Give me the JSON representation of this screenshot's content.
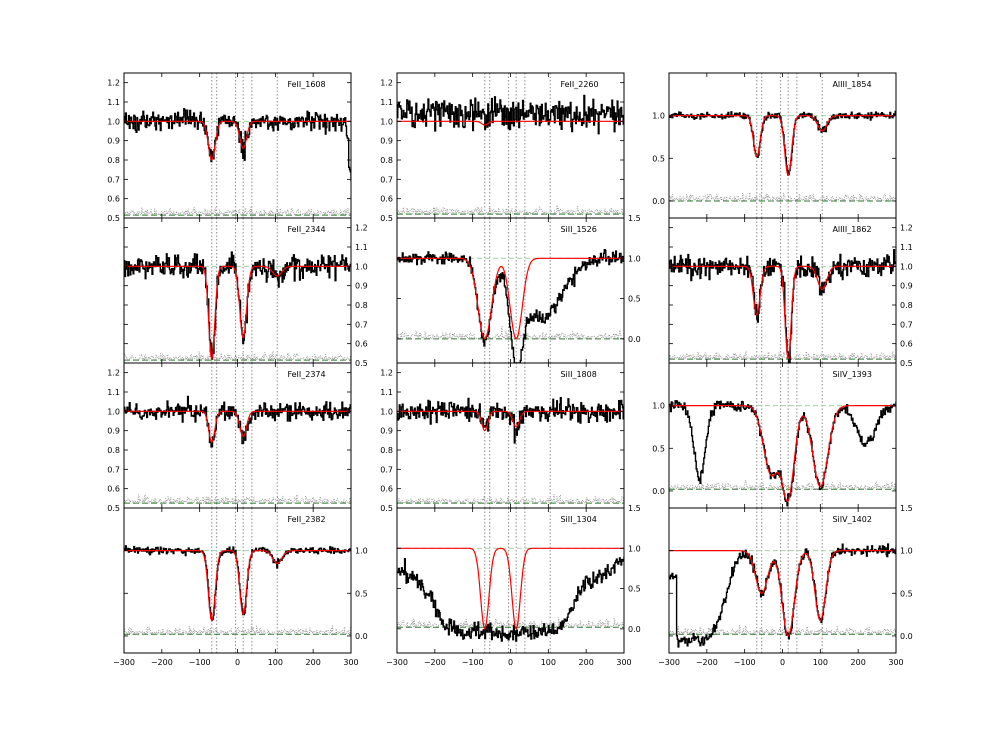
{
  "chart_data": {
    "type": "line",
    "xlim": [
      -300,
      300
    ],
    "x_ticks": [
      -300,
      -200,
      -100,
      0,
      100,
      200,
      300
    ],
    "component_velocities": [
      -68,
      -55,
      -5,
      15,
      38,
      105
    ],
    "colors": {
      "data": "#000000",
      "model": "#ff0000",
      "error": "#8c8c8c",
      "continuum": "#9fd49f",
      "zero": "#2a7a2a",
      "components": "#8c8c8c"
    },
    "columns": [
      {
        "panels": [
          {
            "title": "FeII_1608",
            "ylim": [
              0.5,
              1.25
            ],
            "yticks": [
              "0.5",
              "0.6",
              "0.7",
              "0.8",
              "0.9",
              "1.0",
              "1.1",
              "1.2"
            ],
            "ytick_values": [
              0.5,
              0.6,
              0.7,
              0.8,
              0.9,
              1.0,
              1.1,
              1.2
            ],
            "ticks_side": "left",
            "err_level": 0.515,
            "components": [
              {
                "v": -68,
                "depth": 0.2,
                "sigma": 9
              },
              {
                "v": 15,
                "depth": 0.14,
                "sigma": 9
              }
            ],
            "noise": 0.025,
            "fit_range": [
              -100,
              300
            ],
            "drop_at_end": true
          },
          {
            "title": "FeII_2344",
            "ylim": [
              0.5,
              1.25
            ],
            "yticks": [
              "0.5",
              "0.6",
              "0.7",
              "0.8",
              "0.9",
              "1.0",
              "1.1",
              "1.2"
            ],
            "ytick_values": [
              0.5,
              0.6,
              0.7,
              0.8,
              0.9,
              1.0,
              1.1,
              1.2
            ],
            "ticks_side": "right",
            "err_level": 0.515,
            "components": [
              {
                "v": -68,
                "depth": 0.48,
                "sigma": 8
              },
              {
                "v": 15,
                "depth": 0.37,
                "sigma": 9
              },
              {
                "v": 105,
                "depth": 0.05,
                "sigma": 12
              }
            ],
            "noise": 0.03
          },
          {
            "title": "FeII_2374",
            "ylim": [
              0.5,
              1.25
            ],
            "yticks": [
              "0.5",
              "0.6",
              "0.7",
              "0.8",
              "0.9",
              "1.0",
              "1.1",
              "1.2"
            ],
            "ytick_values": [
              0.5,
              0.6,
              0.7,
              0.8,
              0.9,
              1.0,
              1.1,
              1.2
            ],
            "ticks_side": "left",
            "err_level": 0.525,
            "components": [
              {
                "v": -68,
                "depth": 0.16,
                "sigma": 8
              },
              {
                "v": 15,
                "depth": 0.13,
                "sigma": 9
              }
            ],
            "noise": 0.022
          },
          {
            "title": "FeII_2382",
            "ylim": [
              -0.2,
              1.5
            ],
            "yticks": [
              "0.0",
              "0.5",
              "1.0"
            ],
            "ytick_values": [
              0.0,
              0.5,
              1.0
            ],
            "ticks_side": "right",
            "err_level": 0.02,
            "components": [
              {
                "v": -68,
                "depth": 0.82,
                "sigma": 9
              },
              {
                "v": 15,
                "depth": 0.75,
                "sigma": 9
              },
              {
                "v": 105,
                "depth": 0.15,
                "sigma": 12
              }
            ],
            "noise": 0.02
          }
        ]
      },
      {
        "panels": [
          {
            "title": "FeII_2260",
            "ylim": [
              0.5,
              1.25
            ],
            "yticks": [
              "0.5",
              "0.6",
              "0.7",
              "0.8",
              "0.9",
              "1.0",
              "1.1",
              "1.2"
            ],
            "ytick_values": [
              0.5,
              0.6,
              0.7,
              0.8,
              0.9,
              1.0,
              1.1,
              1.2
            ],
            "ticks_side": "left",
            "err_level": 0.52,
            "components": [
              {
                "v": -68,
                "depth": 0.02,
                "sigma": 8
              }
            ],
            "noise": 0.04,
            "data_offset": 0.04
          },
          {
            "title": "SiII_1526",
            "ylim": [
              -0.3,
              1.5
            ],
            "yticks": [
              "0.0",
              "0.5",
              "1.0",
              "1.5"
            ],
            "ytick_values": [
              0.0,
              0.5,
              1.0,
              1.5
            ],
            "ticks_side": "right",
            "err_level": 0.0,
            "components": [
              {
                "v": -68,
                "depth": 1.0,
                "sigma": 18
              },
              {
                "v": 15,
                "depth": 1.0,
                "sigma": 16
              }
            ],
            "noise": 0.04,
            "data_extra_absorption": {
              "v": 80,
              "depth": 0.75,
              "sigma": 55
            }
          },
          {
            "title": "SiII_1808",
            "ylim": [
              0.5,
              1.25
            ],
            "yticks": [
              "0.5",
              "0.6",
              "0.7",
              "0.8",
              "0.9",
              "1.0",
              "1.1",
              "1.2"
            ],
            "ytick_values": [
              0.5,
              0.6,
              0.7,
              0.8,
              0.9,
              1.0,
              1.1,
              1.2
            ],
            "ticks_side": "left",
            "err_level": 0.525,
            "components": [
              {
                "v": -68,
                "depth": 0.1,
                "sigma": 8
              },
              {
                "v": 15,
                "depth": 0.08,
                "sigma": 9
              }
            ],
            "noise": 0.025
          },
          {
            "title": "SiII_1304",
            "ylim": [
              -0.3,
              1.5
            ],
            "yticks": [
              "0.0",
              "0.5",
              "1.0",
              "1.5"
            ],
            "ytick_values": [
              0.0,
              0.5,
              1.0,
              1.5
            ],
            "ticks_side": "right",
            "err_level": 0.02,
            "components": [
              {
                "v": -68,
                "depth": 1.0,
                "sigma": 11
              },
              {
                "v": 15,
                "depth": 1.0,
                "sigma": 11
              }
            ],
            "noise": 0.05,
            "data_trough": true
          }
        ]
      },
      {
        "panels": [
          {
            "title": "AlIII_1854",
            "ylim": [
              -0.2,
              1.5
            ],
            "yticks": [
              "0.0",
              "0.5",
              "1.0"
            ],
            "ytick_values": [
              0.0,
              0.5,
              1.0
            ],
            "ticks_side": "left",
            "err_level": 0.0,
            "components": [
              {
                "v": -68,
                "depth": 0.48,
                "sigma": 9
              },
              {
                "v": 15,
                "depth": 0.7,
                "sigma": 9
              },
              {
                "v": 105,
                "depth": 0.18,
                "sigma": 12
              }
            ],
            "noise": 0.02
          },
          {
            "title": "AlIII_1862",
            "ylim": [
              0.5,
              1.25
            ],
            "yticks": [
              "0.5",
              "0.6",
              "0.7",
              "0.8",
              "0.9",
              "1.0",
              "1.1",
              "1.2"
            ],
            "ytick_values": [
              0.5,
              0.6,
              0.7,
              0.8,
              0.9,
              1.0,
              1.1,
              1.2
            ],
            "ticks_side": "right",
            "err_level": 0.52,
            "components": [
              {
                "v": -68,
                "depth": 0.25,
                "sigma": 9
              },
              {
                "v": 15,
                "depth": 0.48,
                "sigma": 8
              },
              {
                "v": 105,
                "depth": 0.12,
                "sigma": 12
              }
            ],
            "noise": 0.03
          },
          {
            "title": "SiIV_1393",
            "ylim": [
              -0.2,
              1.5
            ],
            "yticks": [
              "0.0",
              "0.5",
              "1.0"
            ],
            "ytick_values": [
              0.0,
              0.5,
              1.0
            ],
            "ticks_side": "left",
            "err_level": 0.02,
            "components": [
              {
                "v": -30,
                "depth": 0.8,
                "sigma": 20
              },
              {
                "v": 15,
                "depth": 1.05,
                "sigma": 16
              },
              {
                "v": 100,
                "depth": 0.95,
                "sigma": 20
              }
            ],
            "noise": 0.03,
            "data_extra_absorption": {
              "v": -220,
              "depth": 0.85,
              "sigma": 15
            },
            "data_extra_absorption2": {
              "v": 220,
              "depth": 0.45,
              "sigma": 25
            }
          },
          {
            "title": "SiIV_1402",
            "ylim": [
              -0.2,
              1.5
            ],
            "yticks": [
              "0.0",
              "0.5",
              "1.0",
              "1.5"
            ],
            "ytick_values": [
              0.0,
              0.5,
              1.0,
              1.5
            ],
            "ticks_side": "right",
            "err_level": 0.02,
            "components": [
              {
                "v": -55,
                "depth": 0.5,
                "sigma": 16
              },
              {
                "v": 15,
                "depth": 1.0,
                "sigma": 16
              },
              {
                "v": 100,
                "depth": 0.82,
                "sigma": 14
              }
            ],
            "noise": 0.03,
            "data_trough_left": true
          }
        ]
      }
    ]
  }
}
